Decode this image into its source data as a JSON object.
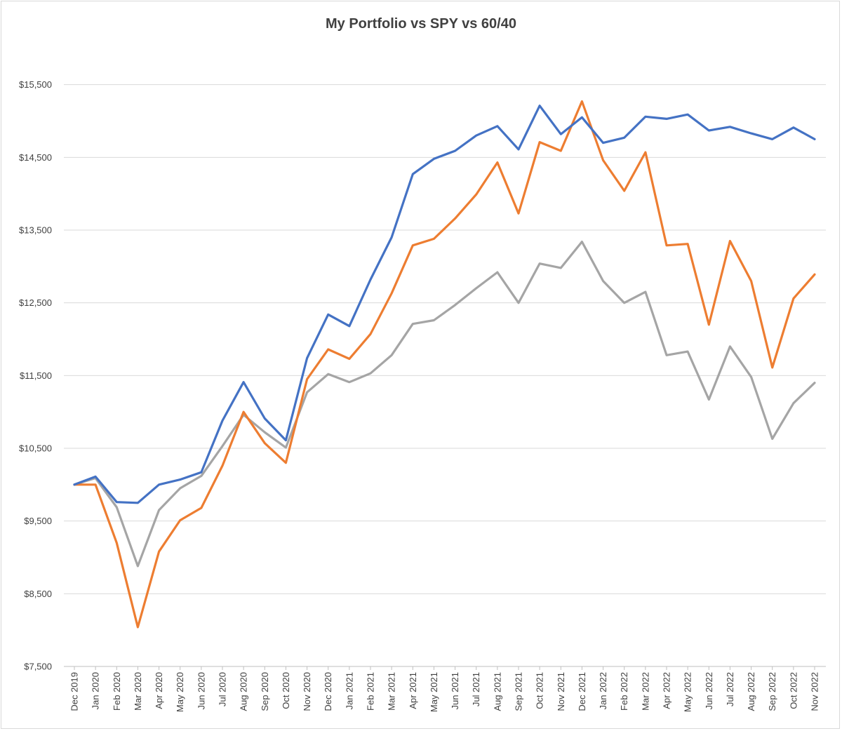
{
  "chart_data": {
    "type": "line",
    "title": "My Portfolio vs SPY vs 60/40",
    "xlabel": "",
    "ylabel": "",
    "ylim": [
      7500,
      16500
    ],
    "yticks": [
      7500,
      8500,
      9500,
      10500,
      11500,
      12500,
      13500,
      14500,
      15500
    ],
    "ytick_labels": [
      "$7,500",
      "$8,500",
      "$9,500",
      "$10,500",
      "$11,500",
      "$12,500",
      "$13,500",
      "$14,500",
      "$15,500"
    ],
    "grid": true,
    "legend": "none",
    "categories": [
      "Dec 2019",
      "Jan 2020",
      "Feb 2020",
      "Mar 2020",
      "Apr 2020",
      "May 2020",
      "Jun 2020",
      "Jul 2020",
      "Aug 2020",
      "Sep 2020",
      "Oct 2020",
      "Nov 2020",
      "Dec 2020",
      "Jan 2021",
      "Feb 2021",
      "Mar 2021",
      "Apr 2021",
      "May 2021",
      "Jun 2021",
      "Jul 2021",
      "Aug 2021",
      "Sep 2021",
      "Oct 2021",
      "Nov 2021",
      "Dec 2021",
      "Jan 2022",
      "Feb 2022",
      "Mar 2022",
      "Apr 2022",
      "May 2022",
      "Jun 2022",
      "Jul 2022",
      "Aug 2022",
      "Sep 2022",
      "Oct 2022",
      "Nov 2022"
    ],
    "series": [
      {
        "color": "#4472C4",
        "values": [
          10000,
          10110,
          9760,
          9750,
          10000,
          10070,
          10170,
          10880,
          11410,
          10910,
          10610,
          11740,
          12340,
          12180,
          12820,
          13400,
          14270,
          14480,
          14590,
          14800,
          14930,
          14610,
          15210,
          14820,
          15050,
          14700,
          14770,
          15060,
          15030,
          15090,
          14870,
          14920,
          14830,
          14750,
          14910,
          14750
        ]
      },
      {
        "color": "#ED7D31",
        "values": [
          10000,
          10000,
          9200,
          8040,
          9080,
          9510,
          9680,
          10260,
          11000,
          10570,
          10300,
          11450,
          11860,
          11730,
          12070,
          12630,
          13290,
          13380,
          13660,
          13990,
          14430,
          13730,
          14710,
          14590,
          15270,
          14460,
          14040,
          14570,
          13290,
          13310,
          12200,
          13350,
          12800,
          11610,
          12560,
          12890
        ]
      },
      {
        "color": "#A5A5A5",
        "values": [
          10000,
          10090,
          9690,
          8880,
          9650,
          9950,
          10120,
          10530,
          10960,
          10720,
          10510,
          11270,
          11520,
          11410,
          11530,
          11780,
          12210,
          12260,
          12470,
          12700,
          12920,
          12500,
          13040,
          12980,
          13340,
          12800,
          12500,
          12650,
          11780,
          11830,
          11170,
          11900,
          11480,
          10630,
          11120,
          11400
        ]
      }
    ]
  }
}
